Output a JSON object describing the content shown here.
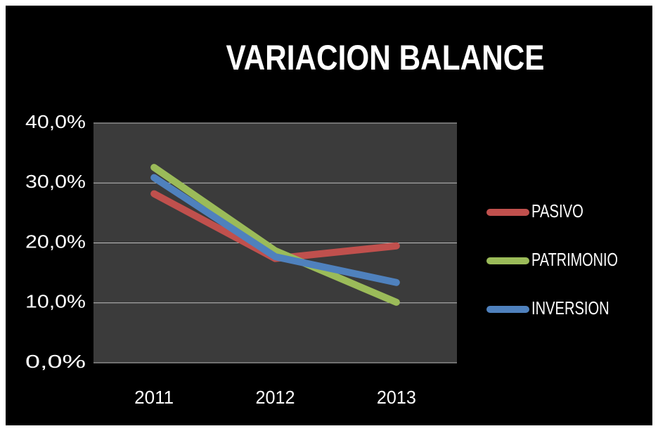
{
  "chart_data": {
    "type": "line",
    "title": "VARIACION BALANCE",
    "categories": [
      "2011",
      "2012",
      "2013"
    ],
    "series": [
      {
        "name": "PASIVO",
        "color": "#c0504d",
        "values": [
          28.2,
          17.4,
          19.5
        ]
      },
      {
        "name": "PATRIMONIO",
        "color": "#9bbb59",
        "values": [
          32.6,
          18.7,
          10.1
        ]
      },
      {
        "name": "INVERSION",
        "color": "#4f81bd",
        "values": [
          30.9,
          17.7,
          13.4
        ]
      }
    ],
    "ylim": [
      0,
      40
    ],
    "yticks": [
      {
        "value": 0,
        "label": "0,0%"
      },
      {
        "value": 10,
        "label": "10,0%"
      },
      {
        "value": 20,
        "label": "20,0%"
      },
      {
        "value": 30,
        "label": "30,0%"
      },
      {
        "value": 40,
        "label": "40,0%"
      }
    ],
    "grid": true,
    "legend": "right"
  }
}
